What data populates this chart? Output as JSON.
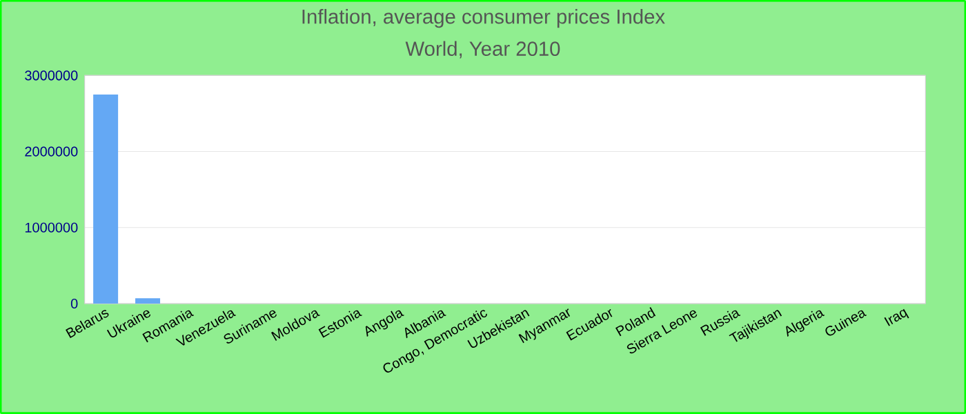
{
  "chart_data": {
    "type": "bar",
    "title": "Inflation, average consumer prices  Index",
    "subtitle": "World, Year 2010",
    "categories": [
      "Belarus",
      "Ukraine",
      "Romania",
      "Venezuela",
      "Suriname",
      "Moldova",
      "Estonia",
      "Angola",
      "Albania",
      "Congo, Democratic",
      "Uzbekistan",
      "Myanmar",
      "Ecuador",
      "Poland",
      "Sierra Leone",
      "Russia",
      "Tajikistan",
      "Algeria",
      "Guinea",
      "Iraq"
    ],
    "values": [
      2750000,
      70000,
      0,
      0,
      0,
      0,
      0,
      0,
      0,
      0,
      0,
      0,
      0,
      0,
      0,
      0,
      0,
      0,
      0,
      0
    ],
    "color": "#64a8f4",
    "ylim": [
      0,
      3000000
    ],
    "yticks": [
      0,
      1000000,
      2000000,
      3000000
    ],
    "grid": "y"
  }
}
